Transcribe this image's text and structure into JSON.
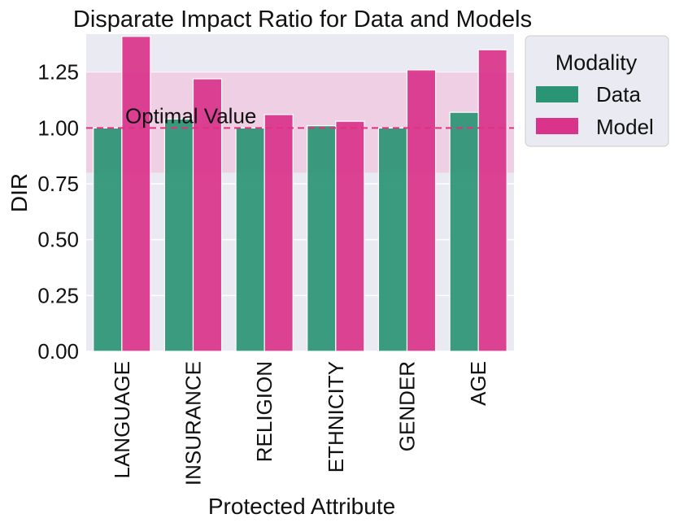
{
  "chart_data": {
    "type": "bar",
    "title": "Disparate Impact Ratio for Data and Models",
    "xlabel": "Protected Attribute",
    "ylabel": "DIR",
    "ylim": [
      0,
      1.42
    ],
    "yticks": [
      0.0,
      0.25,
      0.5,
      0.75,
      1.0,
      1.25
    ],
    "ytick_labels": [
      "0.00",
      "0.25",
      "0.50",
      "0.75",
      "1.00",
      "1.25"
    ],
    "categories": [
      "LANGUAGE",
      "INSURANCE",
      "RELIGION",
      "ETHNICITY",
      "GENDER",
      "AGE"
    ],
    "series": [
      {
        "name": "Data",
        "color": "#2a9474",
        "values": [
          1.0,
          1.04,
          1.0,
          1.01,
          1.0,
          1.07
        ]
      },
      {
        "name": "Model",
        "color": "#d9338a",
        "values": [
          1.41,
          1.22,
          1.06,
          1.03,
          1.26,
          1.35
        ]
      }
    ],
    "legend": {
      "title": "Modality",
      "position": "outside-top-right"
    },
    "reference_line": {
      "value": 1.0,
      "label": "Optimal Value",
      "color": "#e0307f",
      "style": "dashed"
    },
    "band": {
      "from": 0.8,
      "to": 1.25,
      "color": "#f1b8d8"
    },
    "plot_background": "#eaeaf2",
    "grid": true
  }
}
